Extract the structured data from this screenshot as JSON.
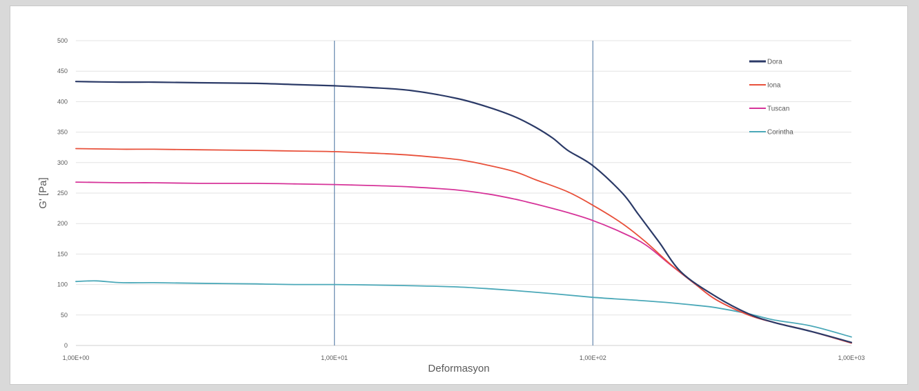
{
  "chart_data": {
    "type": "line",
    "xlabel": "Deformasyon",
    "ylabel": "G' [Pa]",
    "x_scale": "log",
    "xlim": [
      1,
      1000
    ],
    "ylim": [
      0,
      500
    ],
    "grid": true,
    "legend_position": "top-right",
    "x_tick_labels": [
      "1,00E+00",
      "1,00E+01",
      "1,00E+02",
      "1,00E+03"
    ],
    "y_ticks": [
      0,
      50,
      100,
      150,
      200,
      250,
      300,
      350,
      400,
      450,
      500
    ],
    "reference_lines_x": [
      10,
      100
    ],
    "series": [
      {
        "name": "Dora",
        "color": "#2b3a67",
        "x": [
          1,
          1.5,
          2,
          3,
          5,
          7,
          10,
          14,
          20,
          30,
          40,
          50,
          60,
          70,
          80,
          100,
          130,
          150,
          180,
          220,
          300,
          400,
          500,
          700,
          1000
        ],
        "y": [
          433,
          432,
          432,
          431,
          430,
          428,
          426,
          423,
          418,
          405,
          390,
          375,
          358,
          340,
          320,
          295,
          250,
          215,
          170,
          120,
          80,
          52,
          38,
          23,
          5
        ]
      },
      {
        "name": "Iona",
        "color": "#e8503a",
        "x": [
          1,
          1.5,
          2,
          3,
          5,
          7,
          10,
          15,
          20,
          30,
          40,
          50,
          60,
          80,
          100,
          130,
          160,
          200,
          250,
          300,
          400,
          500,
          700,
          1000
        ],
        "y": [
          323,
          322,
          322,
          321,
          320,
          319,
          318,
          315,
          312,
          305,
          295,
          285,
          272,
          252,
          230,
          200,
          170,
          133,
          100,
          75,
          50,
          38,
          23,
          4
        ]
      },
      {
        "name": "Tuscan",
        "color": "#d63399",
        "x": [
          1,
          1.5,
          2,
          3,
          5,
          7,
          10,
          15,
          20,
          30,
          40,
          50,
          60,
          80,
          100,
          130,
          160,
          200,
          250,
          300,
          400,
          500,
          700,
          1000
        ],
        "y": [
          268,
          267,
          267,
          266,
          266,
          265,
          264,
          262,
          260,
          255,
          248,
          240,
          232,
          218,
          205,
          185,
          165,
          132,
          100,
          75,
          50,
          38,
          23,
          4
        ]
      },
      {
        "name": "Corintha",
        "color": "#4aa8b8",
        "x": [
          1,
          1.2,
          1.5,
          2,
          3,
          5,
          7,
          10,
          15,
          20,
          30,
          40,
          50,
          70,
          100,
          150,
          200,
          250,
          300,
          400,
          500,
          700,
          1000
        ],
        "y": [
          105,
          106,
          103,
          103,
          102,
          101,
          100,
          100,
          99,
          98,
          96,
          93,
          90,
          85,
          79,
          74,
          70,
          66,
          62,
          52,
          42,
          32,
          14
        ]
      }
    ]
  }
}
